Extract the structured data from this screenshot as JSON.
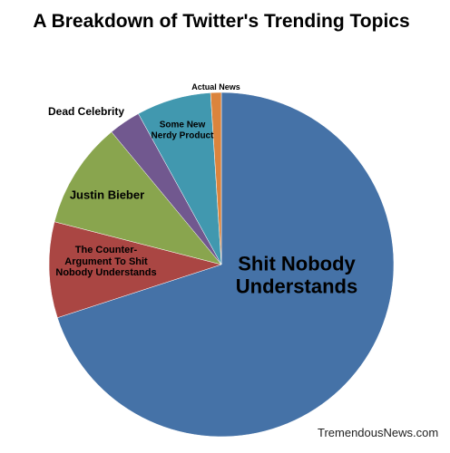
{
  "chart_data": {
    "type": "pie",
    "title": "A Breakdown of Twitter's Trending Topics",
    "categories": [
      "Shit Nobody Understands",
      "The Counter-Argument To Shit Nobody Understands",
      "Justin Bieber",
      "Dead Celebrity",
      "Some New Nerdy Product",
      "Actual News"
    ],
    "values": [
      70,
      9,
      10,
      3,
      7,
      1
    ],
    "colors": [
      "#4572a7",
      "#aa4643",
      "#89a54e",
      "#71588f",
      "#4198af",
      "#db843d"
    ],
    "source": "TremendousNews.com"
  }
}
